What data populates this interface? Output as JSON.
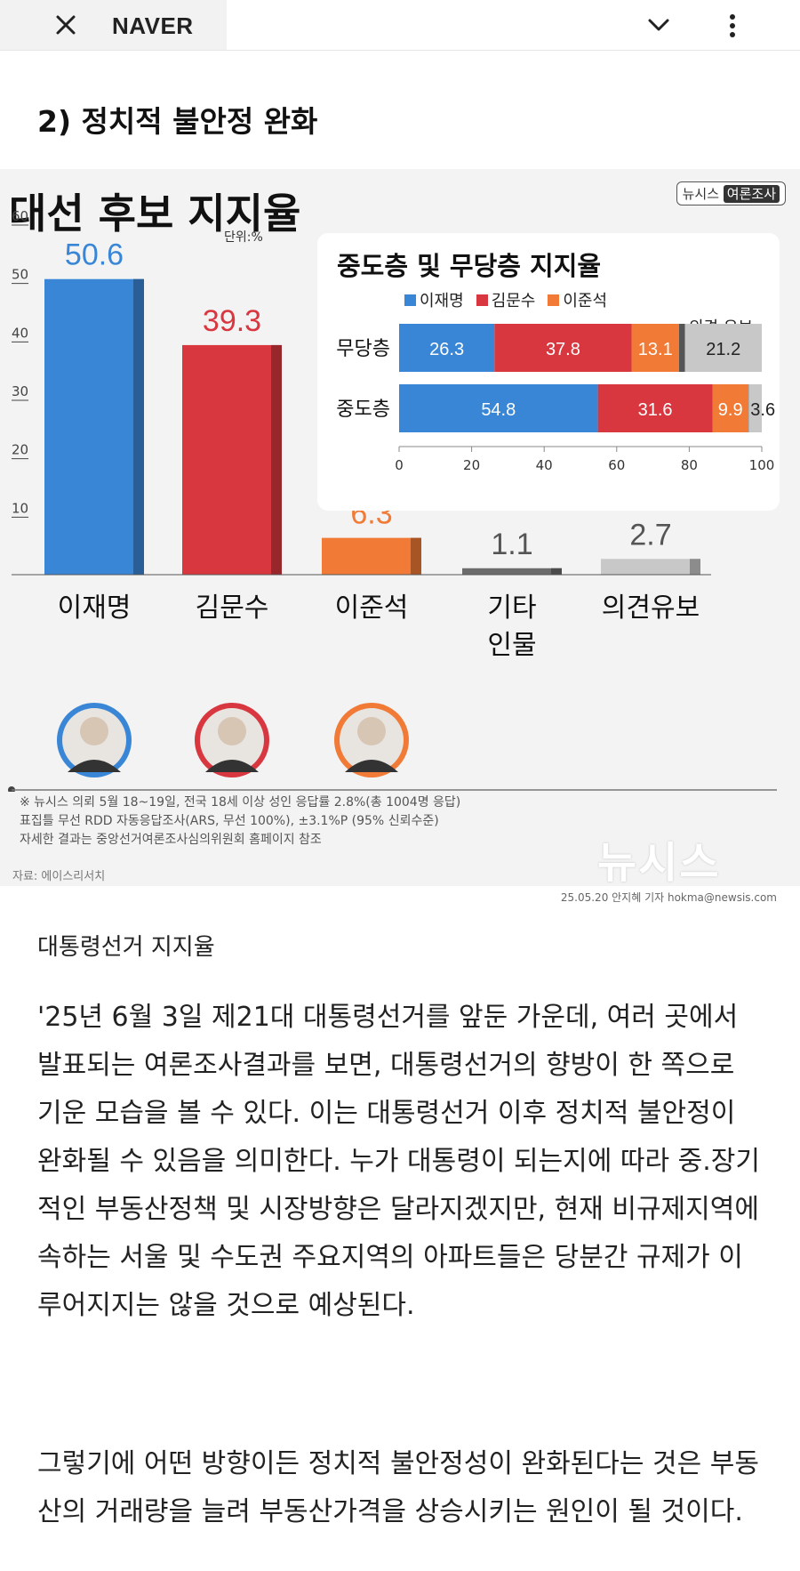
{
  "browser": {
    "title": "NAVER",
    "icons": {
      "close": "close-icon",
      "expand": "chevron-down-icon",
      "more": "more-vertical-icon"
    }
  },
  "section": {
    "heading": "2) 정치적 불안정 완화"
  },
  "infographic": {
    "title": "대선 후보 지지율",
    "brand": {
      "name": "뉴시스",
      "tag": "여론조사"
    },
    "unit": "단위:%",
    "colors": {
      "lee_jm": "#3a86d6",
      "kim_ms": "#d9373f",
      "lee_js": "#f07a36",
      "other": "#6b6b6b",
      "undecided": "#c8c8c8"
    },
    "footnote": [
      "※ 뉴시스 의뢰 5월 18~19일, 전국 18세 이상 성인 응답률 2.8%(총 1004명 응답)",
      "표집틀 무선 RDD  자동응답조사(ARS, 무선 100%), ±3.1%P (95% 신뢰수준)",
      "자세한 결과는 중앙선거여론조사심의위원회 홈페이지 참조"
    ],
    "source": "자료: 에이스리서치",
    "logo": "뉴시스",
    "credit": "25.05.20 안지혜 기자 hokma@newsis.com"
  },
  "chart_data": [
    {
      "type": "bar",
      "title": "대선 후보 지지율",
      "categories": [
        "이재명",
        "김문수",
        "이준석",
        "기타 인물",
        "의견유보"
      ],
      "values": [
        50.6,
        39.3,
        6.3,
        1.1,
        2.7
      ],
      "value_labels": [
        "50.6",
        "39.3",
        "6.3",
        "1.1",
        "2.7"
      ],
      "ylabel": "단위:%",
      "ylim": [
        0,
        60
      ],
      "yticks": [
        10,
        20,
        30,
        40,
        50,
        60
      ],
      "colors": [
        "#3a86d6",
        "#d9373f",
        "#f07a36",
        "#6b6b6b",
        "#c8c8c8"
      ],
      "grid": false
    },
    {
      "type": "bar",
      "orientation": "horizontal",
      "stacked": true,
      "title": "중도층 및 무당층 지지율",
      "categories": [
        "무당층",
        "중도층"
      ],
      "series": [
        {
          "name": "이재명",
          "values": [
            26.3,
            54.8
          ],
          "color": "#3a86d6"
        },
        {
          "name": "김문수",
          "values": [
            37.8,
            31.6
          ],
          "color": "#d9373f"
        },
        {
          "name": "이준석",
          "values": [
            13.1,
            9.9
          ],
          "color": "#f07a36"
        },
        {
          "values": [
            1.6,
            0.1
          ],
          "color": "#555555"
        },
        {
          "values": [
            21.2,
            3.6
          ],
          "color": "#c8c8c8"
        }
      ],
      "segment_labels": [
        [
          "26.3",
          "37.8",
          "13.1",
          "",
          "21.2"
        ],
        [
          "54.8",
          "31.6",
          "9.9",
          "",
          "3.6"
        ]
      ],
      "extra_label": "의견 유보",
      "xlim": [
        0,
        100
      ],
      "xticks": [
        0,
        20,
        40,
        60,
        80,
        100
      ],
      "legend": "top"
    }
  ],
  "article": {
    "caption": "대통령선거 지지율",
    "paragraphs": [
      "'25년 6월 3일 제21대 대통령선거를 앞둔 가운데, 여러 곳에서 발표되는 여론조사결과를 보면, 대통령선거의 향방이 한 쪽으로 기운 모습을 볼 수 있다. 이는 대통령선거 이후 정치적 불안정이 완화될 수 있음을 의미한다. 누가 대통령이 되는지에 따라 중.장기적인 부동산정책 및 시장방향은 달라지겠지만, 현재 비규제지역에 속하는 서울 및 수도권 주요지역의 아파트들은 당분간 규제가 이루어지지는 않을 것으로 예상된다.",
      "그렇기에 어떤 방향이든 정치적 불안정성이 완화된다는 것은 부동산의 거래량을 늘려 부동산가격을 상승시키는 원인이 될 것이다."
    ]
  }
}
